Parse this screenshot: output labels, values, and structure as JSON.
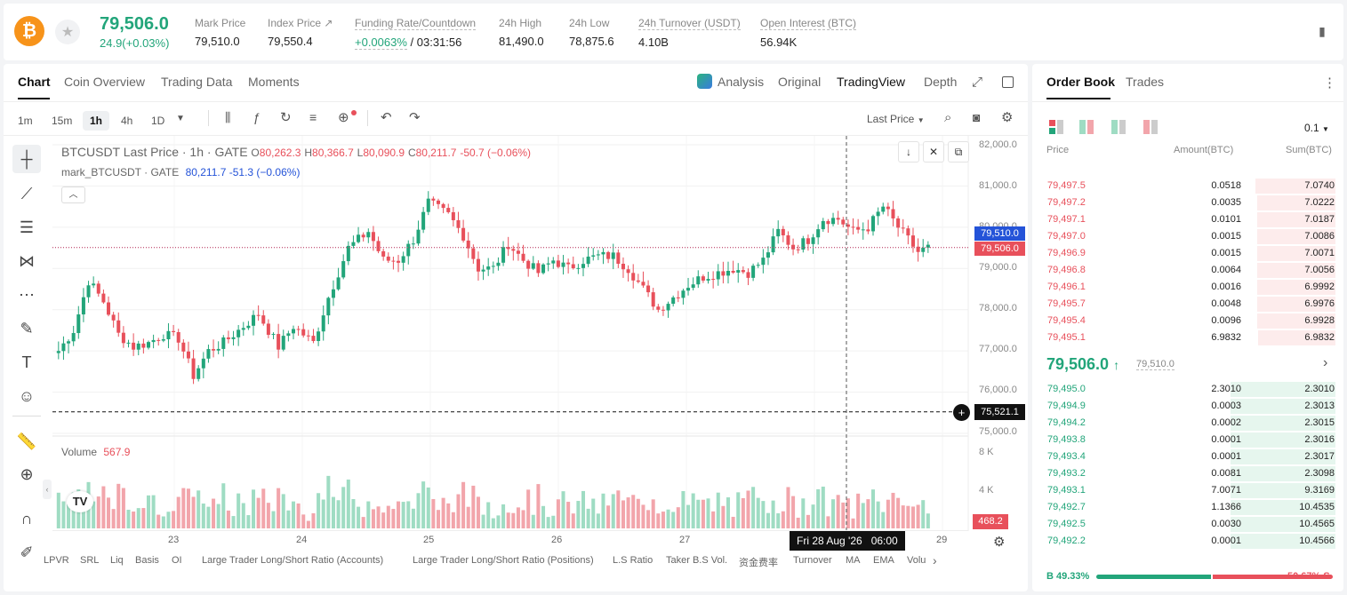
{
  "ticker": {
    "last_price": "79,506.0",
    "change": "24.9(+0.03%)",
    "stats": [
      {
        "label": "Mark Price",
        "value": "79,510.0"
      },
      {
        "label": "Index Price ↗",
        "value": "79,550.4"
      },
      {
        "label": "Funding Rate/Countdown",
        "value": "+0.0063%",
        "value2": " / 03:31:56"
      },
      {
        "label": "24h High",
        "value": "81,490.0"
      },
      {
        "label": "24h Low",
        "value": "78,875.6"
      },
      {
        "label": "24h Turnover (USDT)",
        "value": "4.10B"
      },
      {
        "label": "Open Interest (BTC)",
        "value": "56.94K"
      }
    ]
  },
  "chart_tabs": [
    "Chart",
    "Coin Overview",
    "Trading Data",
    "Moments"
  ],
  "view_tabs": [
    "Analysis",
    "Original",
    "TradingView",
    "Depth"
  ],
  "timeframes": [
    "1m",
    "15m",
    "1h",
    "4h",
    "1D"
  ],
  "last_price_select": "Last Price",
  "legend": {
    "symbol": "BTCUSDT Last Price · 1h · GATE",
    "o_lbl": "O",
    "o": "80,262.3",
    "h_lbl": "H",
    "h": "80,366.7",
    "l_lbl": "L",
    "l": "80,090.9",
    "c_lbl": "C",
    "c": "80,211.7",
    "chg": "-50.7 (−0.06%)",
    "mark_name": "mark_BTCUSDT · GATE",
    "mark_vals": "80,211.7  -51.3 (−0.06%)"
  },
  "chart_data": {
    "type": "candlestick",
    "y_ticks": [
      "82,000.0",
      "81,000.0",
      "80,000.0",
      "79,000.0",
      "78,000.0",
      "77,000.0",
      "76,000.0",
      "75,000.0"
    ],
    "ylim": [
      75000,
      82000
    ],
    "x_ticks": [
      "23",
      "24",
      "25",
      "26",
      "27",
      "29"
    ],
    "price_levels": [
      {
        "label": "79,510.0",
        "value": 79510,
        "color": "#2453d8"
      },
      {
        "label": "79,506.0",
        "value": 79506,
        "color": "#e8505b"
      },
      {
        "label": "75,521.1",
        "value": 75521.1,
        "color": "#111111"
      }
    ],
    "anchors": [
      [
        0,
        77000
      ],
      [
        3,
        77500
      ],
      [
        6,
        78700
      ],
      [
        9,
        78200
      ],
      [
        12,
        77400
      ],
      [
        15,
        77100
      ],
      [
        18,
        77200
      ],
      [
        21,
        77400
      ],
      [
        24,
        77300
      ],
      [
        27,
        76400
      ],
      [
        30,
        77000
      ],
      [
        33,
        77200
      ],
      [
        36,
        77500
      ],
      [
        40,
        77900
      ],
      [
        44,
        77100
      ],
      [
        47,
        77600
      ],
      [
        51,
        77200
      ],
      [
        54,
        78300
      ],
      [
        58,
        79500
      ],
      [
        62,
        79900
      ],
      [
        65,
        79200
      ],
      [
        68,
        79200
      ],
      [
        71,
        79700
      ],
      [
        74,
        80600
      ],
      [
        78,
        80300
      ],
      [
        81,
        79800
      ],
      [
        84,
        79000
      ],
      [
        87,
        79000
      ],
      [
        90,
        79600
      ],
      [
        93,
        79200
      ],
      [
        96,
        78900
      ],
      [
        99,
        79200
      ],
      [
        102,
        79000
      ],
      [
        105,
        79200
      ],
      [
        108,
        79300
      ],
      [
        111,
        79300
      ],
      [
        114,
        79000
      ],
      [
        117,
        78500
      ],
      [
        120,
        78000
      ],
      [
        123,
        78300
      ],
      [
        126,
        78600
      ],
      [
        129,
        78800
      ],
      [
        132,
        78900
      ],
      [
        135,
        79000
      ],
      [
        138,
        78900
      ],
      [
        141,
        79200
      ],
      [
        144,
        79900
      ],
      [
        147,
        79500
      ],
      [
        150,
        79700
      ],
      [
        153,
        80200
      ],
      [
        156,
        80200
      ],
      [
        159,
        79900
      ],
      [
        162,
        80000
      ],
      [
        165,
        80500
      ],
      [
        168,
        80000
      ],
      [
        170,
        79700
      ],
      [
        172,
        79400
      ],
      [
        174,
        79500
      ]
    ],
    "volume_label": "Volume",
    "volume_value": "567.9",
    "volume_ticks": [
      "8 K",
      "4 K"
    ],
    "volume_last": "468.2",
    "crosshair_date": "Fri 28 Aug '26",
    "crosshair_time": "06:00"
  },
  "indicators": [
    "LPVR",
    "SRL",
    "Liq",
    "Basis",
    "OI",
    "Large Trader Long/Short Ratio (Accounts)",
    "Large Trader Long/Short Ratio (Positions)",
    "L.S Ratio",
    "Taker B.S Vol.",
    "资金费率",
    "Turnover",
    "MA",
    "EMA",
    "Volu"
  ],
  "orderbook": {
    "tabs": [
      "Order Book",
      "Trades"
    ],
    "precision": "0.1",
    "headers": [
      "Price",
      "Amount(BTC)",
      "Sum(BTC)"
    ],
    "asks": [
      {
        "price": "79,497.5",
        "amount": "0.0518",
        "sum": "7.0740",
        "depth": 0.76
      },
      {
        "price": "79,497.2",
        "amount": "0.0035",
        "sum": "7.0222",
        "depth": 0.75
      },
      {
        "price": "79,497.1",
        "amount": "0.0101",
        "sum": "7.0187",
        "depth": 0.75
      },
      {
        "price": "79,497.0",
        "amount": "0.0015",
        "sum": "7.0086",
        "depth": 0.75
      },
      {
        "price": "79,496.9",
        "amount": "0.0015",
        "sum": "7.0071",
        "depth": 0.75
      },
      {
        "price": "79,496.8",
        "amount": "0.0064",
        "sum": "7.0056",
        "depth": 0.75
      },
      {
        "price": "79,496.1",
        "amount": "0.0016",
        "sum": "6.9992",
        "depth": 0.75
      },
      {
        "price": "79,495.7",
        "amount": "0.0048",
        "sum": "6.9976",
        "depth": 0.75
      },
      {
        "price": "79,495.4",
        "amount": "0.0096",
        "sum": "6.9928",
        "depth": 0.75
      },
      {
        "price": "79,495.1",
        "amount": "6.9832",
        "sum": "6.9832",
        "depth": 0.74
      }
    ],
    "mid_price": "79,506.0",
    "mid_arrow": "↑",
    "mark": "79,510.0",
    "bids": [
      {
        "price": "79,495.0",
        "amount": "2.3010",
        "sum": "2.3010",
        "depth": 1.0
      },
      {
        "price": "79,494.9",
        "amount": "0.0003",
        "sum": "2.3013",
        "depth": 1.0
      },
      {
        "price": "79,494.2",
        "amount": "0.0002",
        "sum": "2.3015",
        "depth": 1.0
      },
      {
        "price": "79,493.8",
        "amount": "0.0001",
        "sum": "2.3016",
        "depth": 1.0
      },
      {
        "price": "79,493.4",
        "amount": "0.0001",
        "sum": "2.3017",
        "depth": 1.0
      },
      {
        "price": "79,493.2",
        "amount": "0.0081",
        "sum": "2.3098",
        "depth": 1.0
      },
      {
        "price": "79,493.1",
        "amount": "7.0071",
        "sum": "9.3169",
        "depth": 1.0
      },
      {
        "price": "79,492.7",
        "amount": "1.1366",
        "sum": "10.4535",
        "depth": 1.0
      },
      {
        "price": "79,492.5",
        "amount": "0.0030",
        "sum": "10.4565",
        "depth": 1.0
      },
      {
        "price": "79,492.2",
        "amount": "0.0001",
        "sum": "10.4566",
        "depth": 1.0
      }
    ],
    "buy_label": "B 49.33%",
    "sell_label": "50.67% S",
    "buy_ratio": 0.4933
  },
  "colors": {
    "up": "#22a57a",
    "down": "#e8505b",
    "up_soft": "#e6f6ee",
    "down_soft": "#fdecec",
    "up_vol": "#9fdcc3",
    "down_vol": "#f2a5ab"
  }
}
